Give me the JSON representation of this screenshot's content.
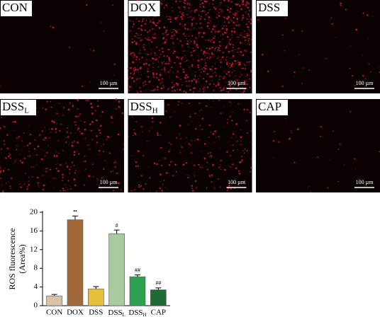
{
  "panels": [
    {
      "label": "CON",
      "scale_bar": "100 µm"
    },
    {
      "label": "DOX",
      "scale_bar": "100 µm"
    },
    {
      "label": "DSSL",
      "scale_bar": "100 µm"
    },
    {
      "label": "DSSH",
      "scale_bar": "100 µm"
    },
    {
      "label": "DSS",
      "scale_bar": "100 µm"
    },
    {
      "label": "CAP",
      "scale_bar": "100 µm"
    }
  ],
  "chart_data": {
    "type": "bar",
    "ylabel": [
      "ROS fluorescence",
      "(Area%)"
    ],
    "categories": [
      "CON",
      "DOX",
      "DSS",
      "DSSL",
      "DSSH",
      "CAP"
    ],
    "values": [
      2.1,
      18.4,
      3.6,
      15.4,
      6.2,
      3.4
    ],
    "errors": [
      0.3,
      0.8,
      0.5,
      0.8,
      0.4,
      0.4
    ],
    "colors": [
      "#d8c2a4",
      "#a1693a",
      "#e6c038",
      "#a9c9a0",
      "#2ea150",
      "#1f6b35"
    ],
    "annotations": [
      {
        "category": "DOX",
        "text": "••"
      },
      {
        "category": "DSSL",
        "text": "#"
      },
      {
        "category": "DSSH",
        "text": "##"
      },
      {
        "category": "CAP",
        "text": "##"
      }
    ],
    "ylim": [
      0,
      20
    ],
    "yticks": [
      0,
      4,
      8,
      12,
      16,
      20
    ]
  }
}
